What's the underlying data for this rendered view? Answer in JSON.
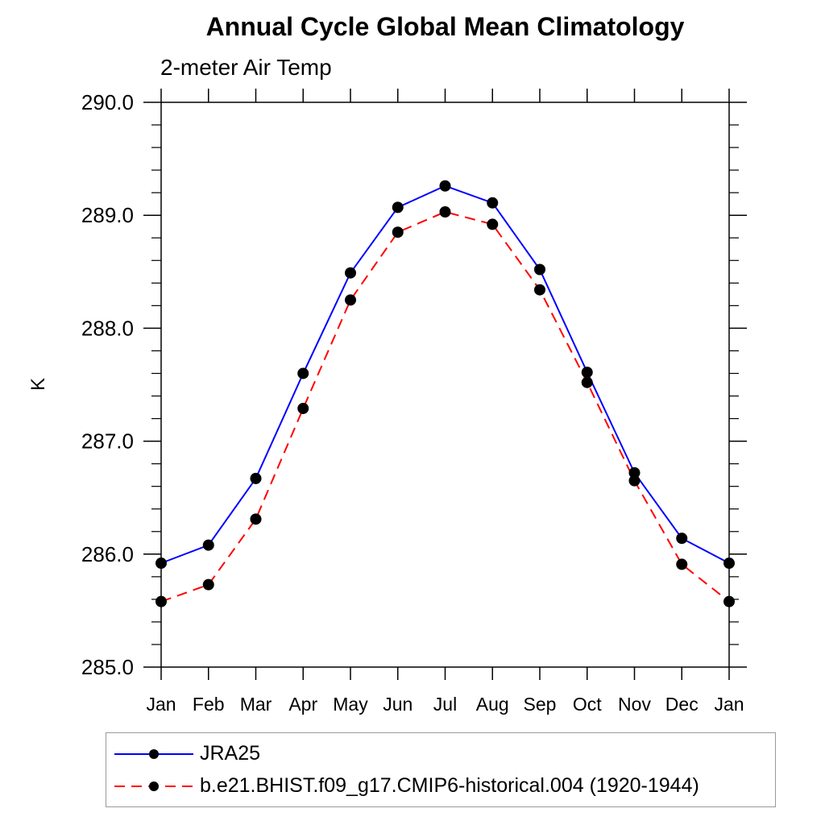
{
  "chart_data": {
    "type": "line",
    "title": "Annual Cycle Global Mean Climatology",
    "subtitle": "2-meter Air Temp",
    "ylabel": "K",
    "xlabel": "",
    "categories": [
      "Jan",
      "Feb",
      "Mar",
      "Apr",
      "May",
      "Jun",
      "Jul",
      "Aug",
      "Sep",
      "Oct",
      "Nov",
      "Dec",
      "Jan"
    ],
    "series": [
      {
        "name": "JRA25",
        "color": "#0000ff",
        "line_style": "solid",
        "marker": "circle",
        "marker_color": "#000000",
        "values": [
          285.92,
          286.08,
          286.67,
          287.6,
          288.49,
          289.07,
          289.26,
          289.11,
          288.52,
          287.61,
          286.72,
          286.14,
          285.92
        ]
      },
      {
        "name": "b.e21.BHIST.f09_g17.CMIP6-historical.004 (1920-1944)",
        "color": "#ff0000",
        "line_style": "dashed",
        "marker": "circle",
        "marker_color": "#000000",
        "values": [
          285.58,
          285.73,
          286.31,
          287.29,
          288.25,
          288.85,
          289.03,
          288.92,
          288.34,
          287.52,
          286.65,
          285.91,
          285.58
        ]
      }
    ],
    "ylim": [
      285.0,
      290.0
    ],
    "y_major_tick_labels": [
      "285.0",
      "286.0",
      "287.0",
      "288.0",
      "289.0",
      "290.0"
    ],
    "y_minor_tick_step": 0.2,
    "grid": false,
    "legend_position": "bottom-left-box"
  }
}
